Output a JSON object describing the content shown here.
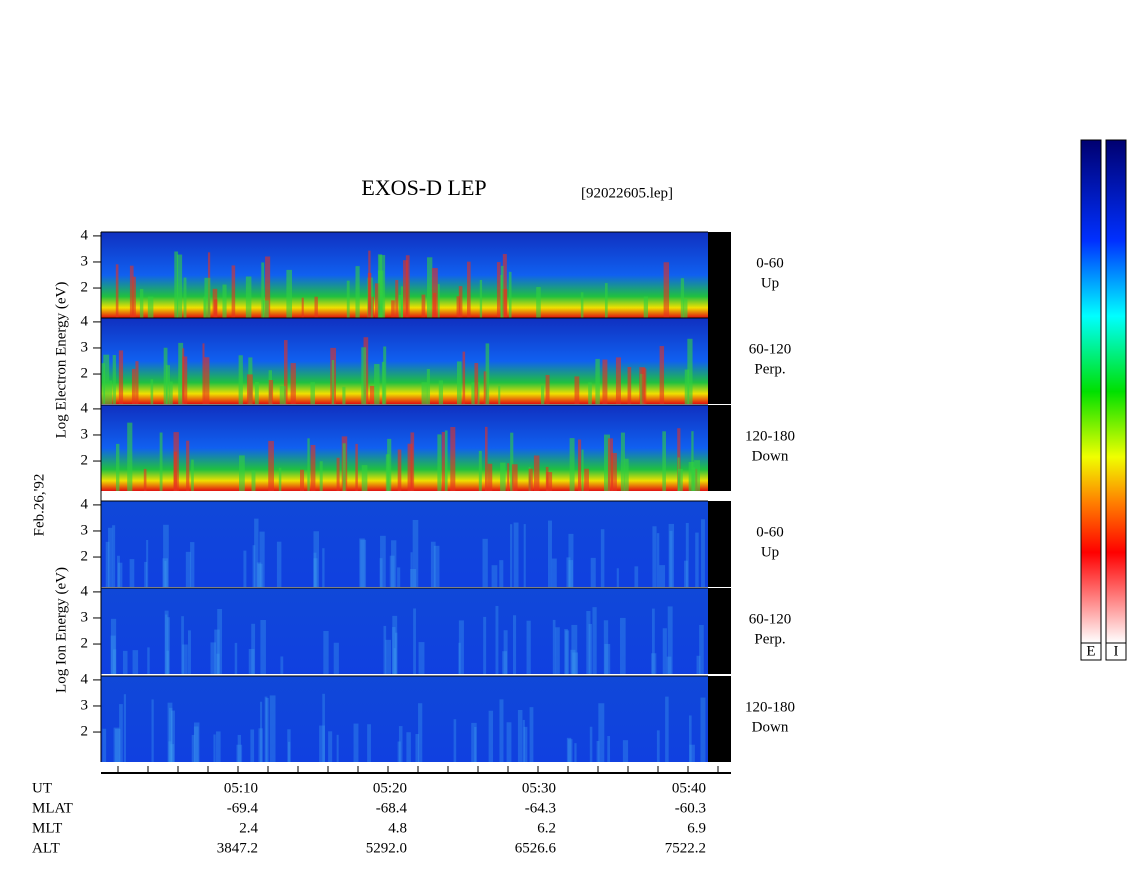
{
  "title": "EXOS-D LEP",
  "file": "[92022605.lep]",
  "date": "Feb.26,'92",
  "electron_axis_label": "Log  Electron  Energy (eV)",
  "ion_axis_label": "Log  Ion  Energy (eV)",
  "ylim": [
    0.85,
    4.15
  ],
  "yticks": [
    4,
    3,
    2
  ],
  "panels": [
    {
      "species": "electron",
      "angle": "0-60",
      "direction": "Up"
    },
    {
      "species": "electron",
      "angle": "60-120",
      "direction": "Perp."
    },
    {
      "species": "electron",
      "angle": "120-180",
      "direction": "Down"
    },
    {
      "species": "ion",
      "angle": "0-60",
      "direction": "Up"
    },
    {
      "species": "ion",
      "angle": "60-120",
      "direction": "Perp."
    },
    {
      "species": "ion",
      "angle": "120-180",
      "direction": "Down"
    }
  ],
  "x_axis": {
    "row_labels": [
      "UT",
      "MLAT",
      "MLT",
      "ALT"
    ],
    "columns": [
      [
        "05:10",
        "-69.4",
        "2.4",
        "3847.2"
      ],
      [
        "05:20",
        "-68.4",
        "4.8",
        "5292.0"
      ],
      [
        "05:30",
        "-64.3",
        "6.2",
        "6526.6"
      ],
      [
        "05:40",
        "-60.3",
        "6.9",
        "7522.2"
      ]
    ]
  },
  "colorbars": [
    "E",
    "I"
  ]
}
